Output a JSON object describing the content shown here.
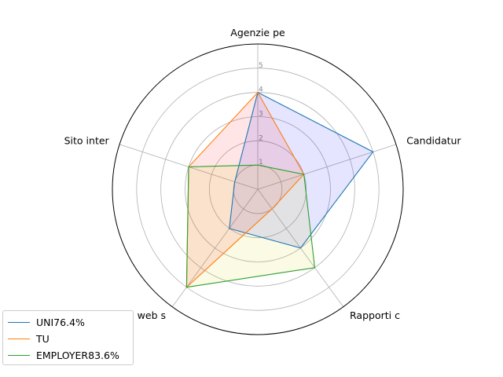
{
  "chart_data": {
    "type": "radar",
    "axes": [
      "Agenzie pe",
      "Candidatur",
      "Rapporti c",
      "Siti web s",
      "Sito inter"
    ],
    "radial_ticks": [
      "1",
      "2",
      "3",
      "4",
      "5"
    ],
    "rmax": 6,
    "grid": true,
    "legend_position": "lower-left",
    "series": [
      {
        "name": "UNI76.4%",
        "color": "#1f77b4",
        "fill": "#0000ff",
        "fill_opacity": 0.1,
        "values": [
          4,
          5,
          3,
          2,
          1
        ]
      },
      {
        "name": "TU",
        "color": "#ff7f0e",
        "fill": "#ff0000",
        "fill_opacity": 0.1,
        "values": [
          4,
          2,
          1,
          5,
          3
        ]
      },
      {
        "name": "EMPLOYER83.6%",
        "color": "#2ca02c",
        "fill": "#cccc00",
        "fill_opacity": 0.1,
        "values": [
          1,
          2,
          4,
          5,
          3
        ]
      }
    ]
  }
}
